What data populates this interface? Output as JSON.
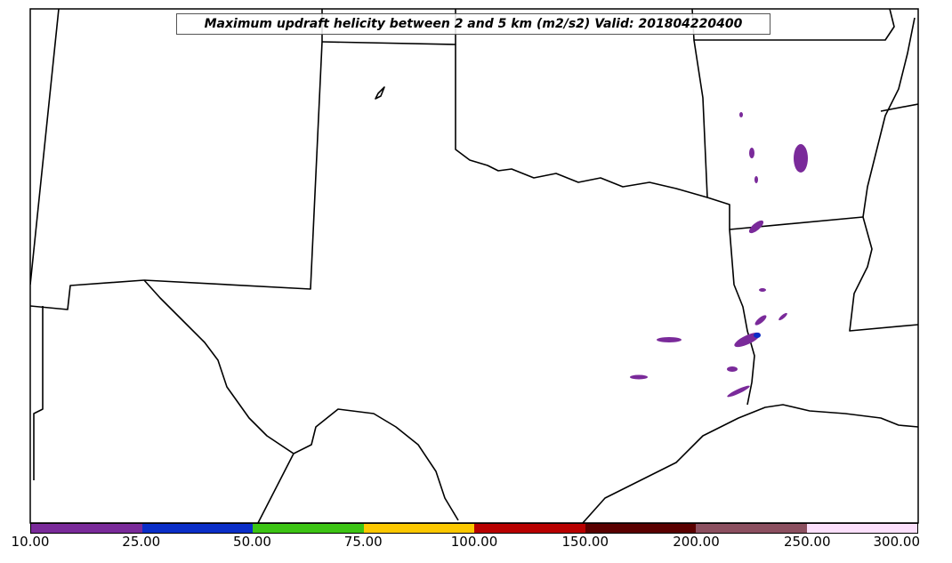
{
  "title": "Maximum updraft helicity between 2 and 5 km (m2/s2) Valid: 201804220400",
  "colorbar": {
    "ticks": [
      "10.00",
      "25.00",
      "50.00",
      "75.00",
      "100.00",
      "150.00",
      "200.00",
      "250.00",
      "300.00"
    ],
    "colors": [
      "#7a2a9a",
      "#0a2ec8",
      "#3cc414",
      "#fcc800",
      "#b80000",
      "#5a0000",
      "#8c5060",
      "#fce0fc"
    ]
  },
  "layers": {
    "boundary_color": "#000000",
    "swath_color": "#7a2a9a",
    "swath_core_color": "#0a2ec8"
  }
}
